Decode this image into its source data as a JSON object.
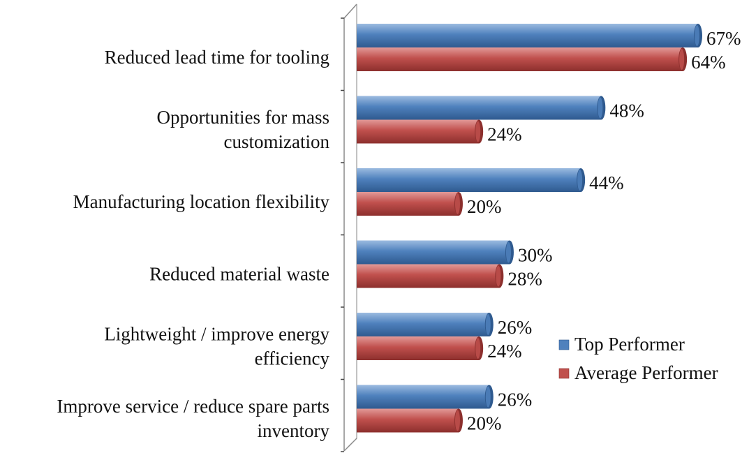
{
  "chart_data": {
    "type": "bar",
    "orientation": "horizontal",
    "style": "3d-cylinder",
    "categories": [
      [
        "Reduced lead time for tooling"
      ],
      [
        "Opportunities for mass",
        "customization"
      ],
      [
        "Manufacturing location flexibility"
      ],
      [
        "Reduced material waste"
      ],
      [
        "Lightweight / improve energy",
        "efficiency"
      ],
      [
        "Improve service / reduce spare parts",
        "inventory"
      ]
    ],
    "series": [
      {
        "name": "Top Performer",
        "values": [
          67,
          48,
          44,
          30,
          26,
          26
        ],
        "labels": [
          "67%",
          "48%",
          "44%",
          "30%",
          "26%",
          "26%"
        ],
        "color": "#4f81bd",
        "color_dark": "#2f5a8f",
        "color_light": "#9cbbe0"
      },
      {
        "name": "Average Performer",
        "values": [
          64,
          24,
          20,
          28,
          24,
          20
        ],
        "labels": [
          "64%",
          "24%",
          "20%",
          "28%",
          "24%",
          "20%"
        ],
        "color": "#c0504d",
        "color_dark": "#8c2f2d",
        "color_light": "#e29a98"
      }
    ],
    "xlim": [
      0,
      67
    ],
    "title": "",
    "xlabel": "",
    "ylabel": "",
    "gridlines": false,
    "legend_position": "bottom-right, inside"
  }
}
